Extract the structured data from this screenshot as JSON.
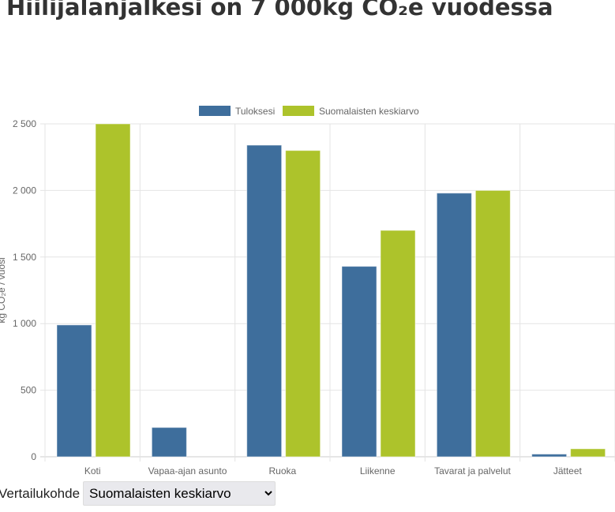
{
  "title": "Hiilijalanjälkesi on 7 000kg CO₂e vuodessa",
  "compare": {
    "label": "Vertailukohde",
    "selected": "Suomalaisten keskiarvo"
  },
  "chart_data": {
    "type": "bar",
    "title": "",
    "ylabel": "kg CO₂e / vuosi",
    "xlabel": "",
    "categories": [
      "Koti",
      "Vapaa-ajan asunto",
      "Ruoka",
      "Liikenne",
      "Tavarat ja palvelut",
      "Jätteet"
    ],
    "series": [
      {
        "name": "Tuloksesi",
        "color": "#3e6e9c",
        "values": [
          990,
          220,
          2340,
          1430,
          1980,
          20
        ]
      },
      {
        "name": "Suomalaisten keskiarvo",
        "color": "#adc32b",
        "values": [
          2500,
          0,
          2300,
          1700,
          2000,
          60
        ]
      }
    ],
    "ylim": [
      0,
      2500
    ],
    "yticks": [
      0,
      500,
      1000,
      1500,
      2000,
      2500
    ],
    "ytick_labels": [
      "0",
      "500",
      "1 000",
      "1 500",
      "2 000",
      "2 500"
    ],
    "grid": true,
    "legend": "top-center"
  }
}
